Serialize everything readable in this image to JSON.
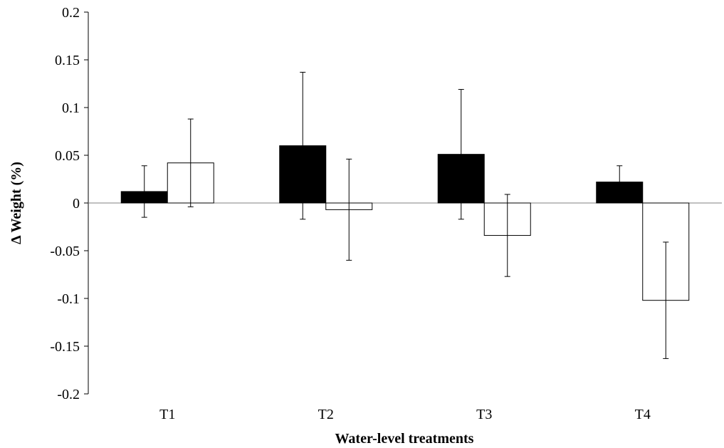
{
  "chart_data": {
    "type": "bar",
    "title": "",
    "xlabel": "Water-level treatments",
    "ylabel": "Δ Weight (%)",
    "ylim": [
      -0.2,
      0.2
    ],
    "yticks": [
      "0.2",
      "0.15",
      "0.1",
      "0.05",
      "0",
      "-0.05",
      "-0.1",
      "-0.15",
      "-0.2"
    ],
    "yticks_values": [
      0.2,
      0.15,
      0.1,
      0.05,
      0,
      -0.05,
      -0.1,
      -0.15,
      -0.2
    ],
    "categories": [
      "T1",
      "T2",
      "T3",
      "T4"
    ],
    "series": [
      {
        "fill": "#000000",
        "values": [
          0.012,
          0.06,
          0.051,
          0.022
        ],
        "error": [
          0.027,
          0.077,
          0.068,
          0.017
        ]
      },
      {
        "fill": "#ffffff",
        "values": [
          0.042,
          -0.007,
          -0.034,
          -0.102
        ],
        "error": [
          0.046,
          0.053,
          0.043,
          0.061
        ]
      }
    ],
    "grid": false,
    "legend": "none"
  }
}
